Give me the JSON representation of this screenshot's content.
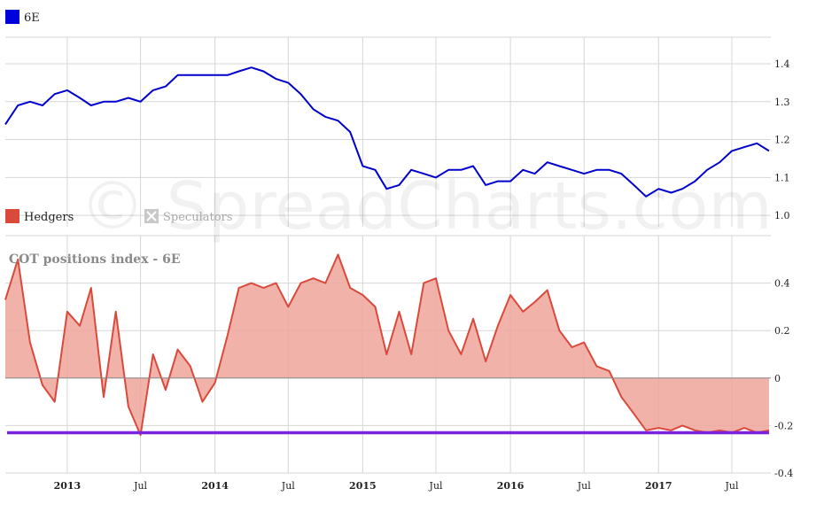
{
  "watermark": "© SpreadCharts.com",
  "legend": {
    "top": {
      "label": "6E",
      "color": "#0000dd"
    },
    "hedgers": {
      "label": "Hedgers",
      "color": "#d94a3c"
    },
    "speculators": {
      "label": "Speculators",
      "color": "#aaaaaa"
    }
  },
  "colors": {
    "price_line": "#0000cc",
    "cot_line": "#d94a3c",
    "cot_fill": "#eea49b",
    "threshold_line": "#7a22dd"
  },
  "chart_data": [
    {
      "type": "line",
      "title": "",
      "series": [
        {
          "name": "6E",
          "x": [
            "2012-08-01",
            "2012-09-01",
            "2012-10-01",
            "2012-11-01",
            "2012-12-01",
            "2013-01-01",
            "2013-02-01",
            "2013-03-01",
            "2013-04-01",
            "2013-05-01",
            "2013-06-01",
            "2013-07-01",
            "2013-08-01",
            "2013-09-01",
            "2013-10-01",
            "2013-11-01",
            "2013-12-01",
            "2014-01-01",
            "2014-02-01",
            "2014-03-01",
            "2014-04-01",
            "2014-05-01",
            "2014-06-01",
            "2014-07-01",
            "2014-08-01",
            "2014-09-01",
            "2014-10-01",
            "2014-11-01",
            "2014-12-01",
            "2015-01-01",
            "2015-02-01",
            "2015-03-01",
            "2015-04-01",
            "2015-05-01",
            "2015-06-01",
            "2015-07-01",
            "2015-08-01",
            "2015-09-01",
            "2015-10-01",
            "2015-11-01",
            "2015-12-01",
            "2016-01-01",
            "2016-02-01",
            "2016-03-01",
            "2016-04-01",
            "2016-05-01",
            "2016-06-01",
            "2016-07-01",
            "2016-08-01",
            "2016-09-01",
            "2016-10-01",
            "2016-11-01",
            "2016-12-01",
            "2017-01-01",
            "2017-02-01",
            "2017-03-01",
            "2017-04-01",
            "2017-05-01",
            "2017-06-01",
            "2017-07-01",
            "2017-08-01",
            "2017-09-01",
            "2017-10-01"
          ],
          "y": [
            1.24,
            1.29,
            1.3,
            1.29,
            1.32,
            1.33,
            1.31,
            1.29,
            1.3,
            1.3,
            1.31,
            1.3,
            1.33,
            1.34,
            1.37,
            1.37,
            1.37,
            1.37,
            1.37,
            1.38,
            1.39,
            1.38,
            1.36,
            1.35,
            1.32,
            1.28,
            1.26,
            1.25,
            1.22,
            1.13,
            1.12,
            1.07,
            1.08,
            1.12,
            1.11,
            1.1,
            1.12,
            1.12,
            1.13,
            1.08,
            1.09,
            1.09,
            1.12,
            1.11,
            1.14,
            1.13,
            1.12,
            1.11,
            1.12,
            1.12,
            1.11,
            1.08,
            1.05,
            1.07,
            1.06,
            1.07,
            1.09,
            1.12,
            1.14,
            1.17,
            1.18,
            1.19,
            1.17
          ]
        }
      ],
      "yticks": [
        1.0,
        1.1,
        1.2,
        1.3,
        1.4
      ],
      "ylim": [
        0.97,
        1.47
      ]
    },
    {
      "type": "area",
      "title": "COT positions index - 6E",
      "series": [
        {
          "name": "Hedgers",
          "x": [
            "2012-08-01",
            "2012-09-01",
            "2012-10-01",
            "2012-11-01",
            "2012-12-01",
            "2013-01-01",
            "2013-02-01",
            "2013-03-01",
            "2013-04-01",
            "2013-05-01",
            "2013-06-01",
            "2013-07-01",
            "2013-08-01",
            "2013-09-01",
            "2013-10-01",
            "2013-11-01",
            "2013-12-01",
            "2014-01-01",
            "2014-02-01",
            "2014-03-01",
            "2014-04-01",
            "2014-05-01",
            "2014-06-01",
            "2014-07-01",
            "2014-08-01",
            "2014-09-01",
            "2014-10-01",
            "2014-11-01",
            "2014-12-01",
            "2015-01-01",
            "2015-02-01",
            "2015-03-01",
            "2015-04-01",
            "2015-05-01",
            "2015-06-01",
            "2015-07-01",
            "2015-08-01",
            "2015-09-01",
            "2015-10-01",
            "2015-11-01",
            "2015-12-01",
            "2016-01-01",
            "2016-02-01",
            "2016-03-01",
            "2016-04-01",
            "2016-05-01",
            "2016-06-01",
            "2016-07-01",
            "2016-08-01",
            "2016-09-01",
            "2016-10-01",
            "2016-11-01",
            "2016-12-01",
            "2017-01-01",
            "2017-02-01",
            "2017-03-01",
            "2017-04-01",
            "2017-05-01",
            "2017-06-01",
            "2017-07-01",
            "2017-08-01",
            "2017-09-01",
            "2017-10-01"
          ],
          "y": [
            0.33,
            0.5,
            0.15,
            -0.03,
            -0.1,
            0.28,
            0.22,
            0.38,
            -0.08,
            0.28,
            -0.12,
            -0.24,
            0.1,
            -0.05,
            0.12,
            0.05,
            -0.1,
            -0.02,
            0.18,
            0.38,
            0.4,
            0.38,
            0.4,
            0.3,
            0.4,
            0.42,
            0.4,
            0.52,
            0.38,
            0.35,
            0.3,
            0.1,
            0.28,
            0.1,
            0.4,
            0.42,
            0.2,
            0.1,
            0.25,
            0.07,
            0.22,
            0.35,
            0.28,
            0.32,
            0.37,
            0.2,
            0.13,
            0.15,
            0.05,
            0.03,
            -0.08,
            -0.15,
            -0.22,
            -0.21,
            -0.22,
            -0.2,
            -0.22,
            -0.23,
            -0.22,
            -0.23,
            -0.21,
            -0.23,
            -0.22
          ]
        }
      ],
      "threshold": -0.23,
      "yticks": [
        -0.4,
        -0.2,
        0,
        0.2,
        0.4
      ],
      "ytick_labels": [
        "-0.4",
        "-0.2",
        "0",
        "0.2",
        "0.4"
      ],
      "ylim": [
        -0.4,
        0.6
      ]
    }
  ],
  "x_axis": {
    "range": [
      "2012-08-01",
      "2017-10-01"
    ],
    "ticks": [
      {
        "date": "2013-01-01",
        "label": "2013",
        "year": true
      },
      {
        "date": "2013-07-01",
        "label": "Jul",
        "year": false
      },
      {
        "date": "2014-01-01",
        "label": "2014",
        "year": true
      },
      {
        "date": "2014-07-01",
        "label": "Jul",
        "year": false
      },
      {
        "date": "2015-01-01",
        "label": "2015",
        "year": true
      },
      {
        "date": "2015-07-01",
        "label": "Jul",
        "year": false
      },
      {
        "date": "2016-01-01",
        "label": "2016",
        "year": true
      },
      {
        "date": "2016-07-01",
        "label": "Jul",
        "year": false
      },
      {
        "date": "2017-01-01",
        "label": "2017",
        "year": true
      },
      {
        "date": "2017-07-01",
        "label": "Jul",
        "year": false
      }
    ]
  }
}
